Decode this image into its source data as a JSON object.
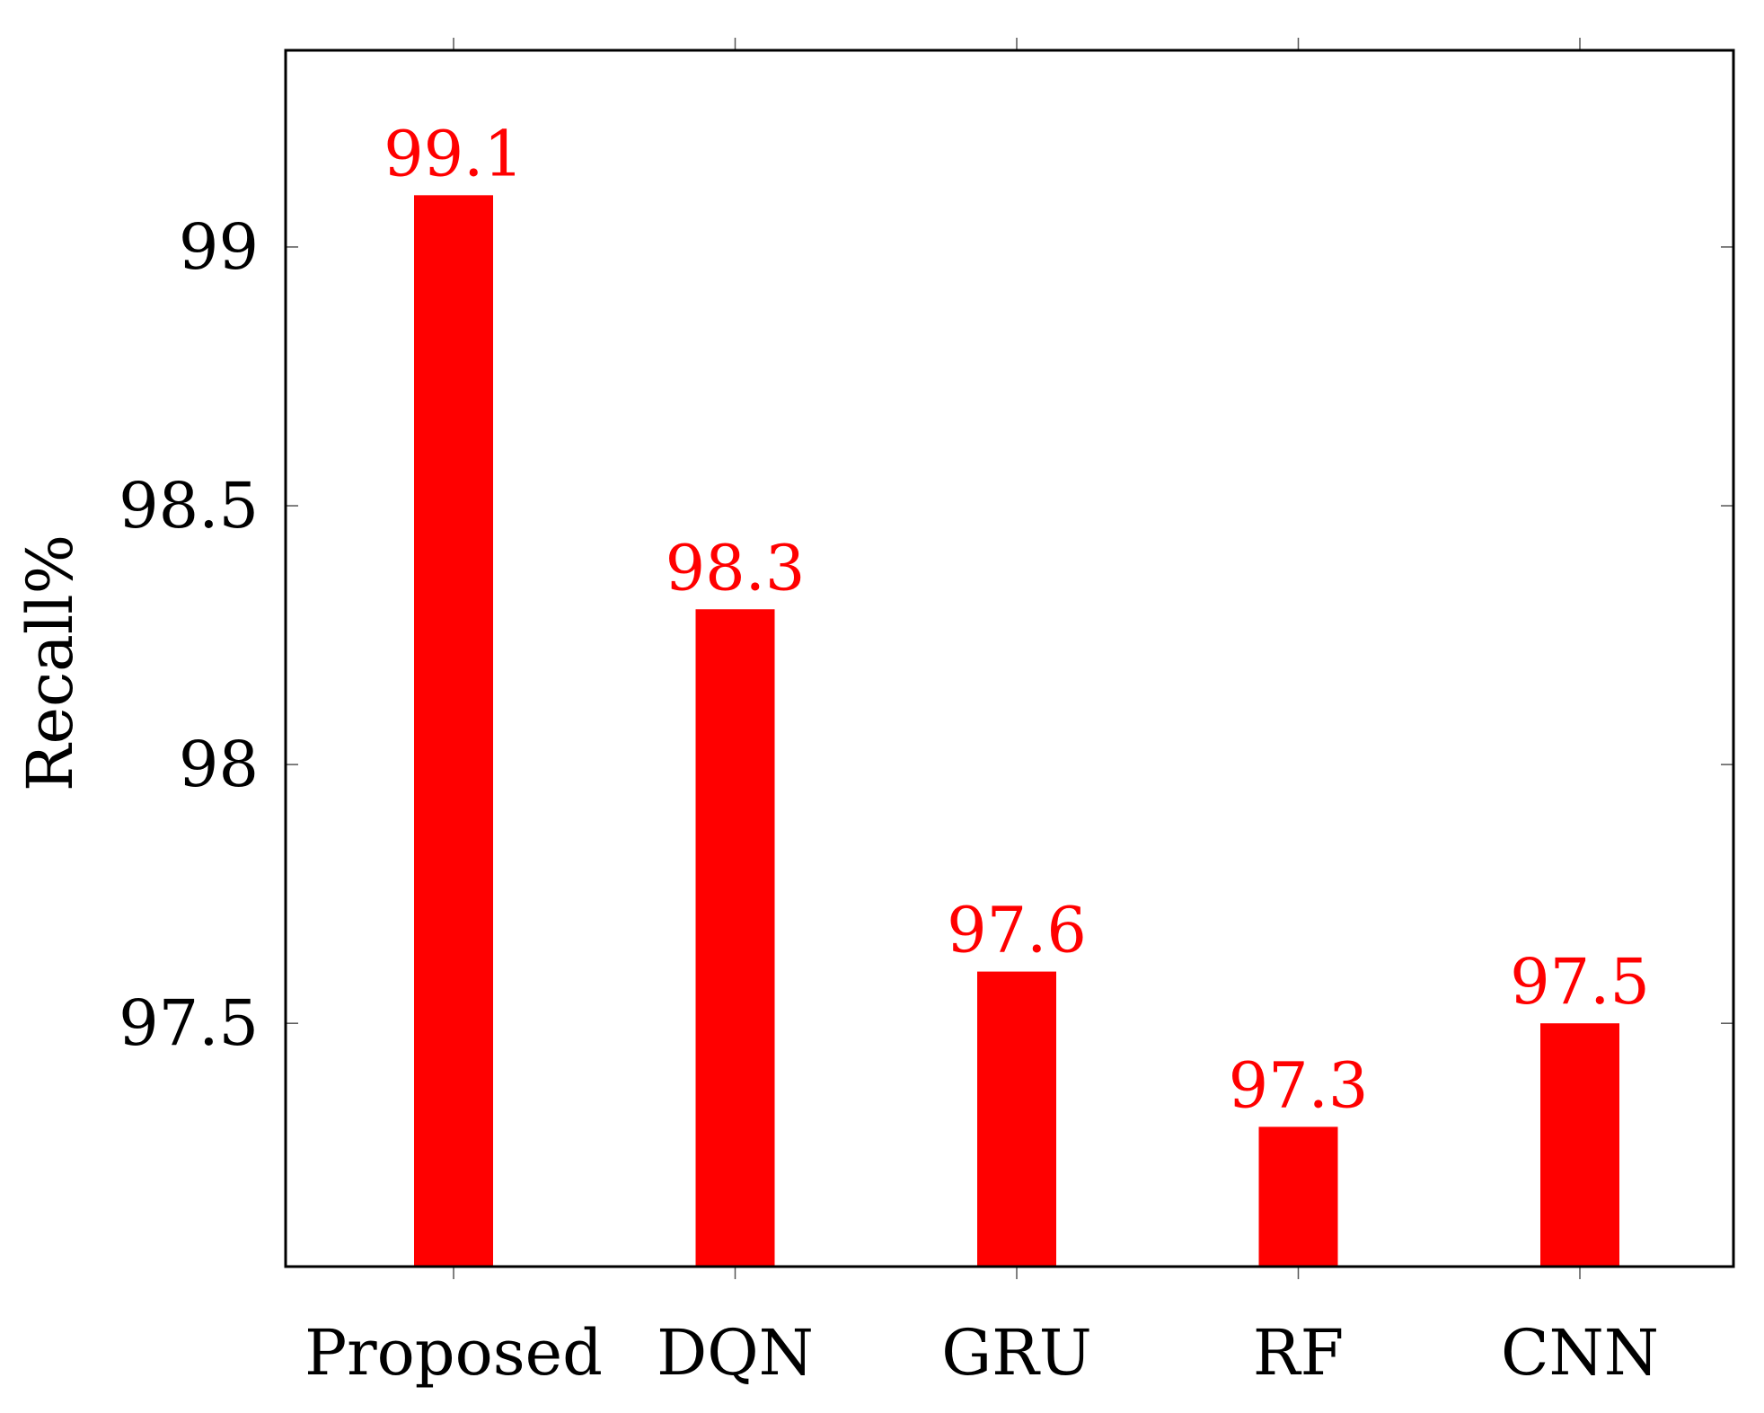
{
  "chart_data": {
    "type": "bar",
    "title": "",
    "xlabel": "",
    "ylabel": "Recall%",
    "categories": [
      "Proposed",
      "DQN",
      "GRU",
      "RF",
      "CNN"
    ],
    "series": [
      {
        "values": [
          99.1,
          98.3,
          97.6,
          97.3,
          97.5
        ]
      }
    ],
    "data_labels": [
      "99.1",
      "98.3",
      "97.6",
      "97.3",
      "97.5"
    ],
    "yticks": [
      97.5,
      98,
      98.5,
      99
    ],
    "ytick_labels": [
      "97.5",
      "98",
      "98.5",
      "99"
    ],
    "ylim": [
      97.03,
      99.38
    ],
    "grid": false,
    "legend": "none",
    "bar_color": "#ff0000",
    "label_color": "#ff0000"
  }
}
